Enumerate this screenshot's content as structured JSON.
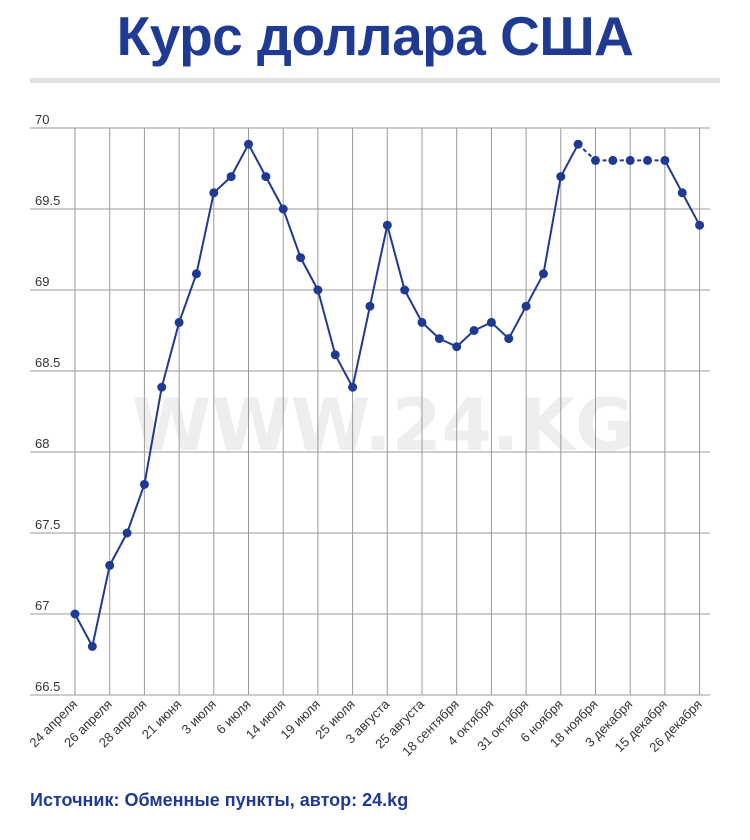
{
  "title": "Курс доллара США",
  "watermark": "WWW.24.KG",
  "source": "Источник: Обменные пункты, автор: 24.kg",
  "colors": {
    "title": "#1f3a93",
    "line": "#1f3a93",
    "grid": "#999999",
    "watermark": "#eeeeee"
  },
  "chart_data": {
    "type": "line",
    "y_ticks": [
      "70",
      "69.5",
      "69",
      "68.5",
      "68",
      "67.5",
      "67",
      "66.5"
    ],
    "ylim": [
      66.5,
      70
    ],
    "x_tick_labels": [
      "24 апреля",
      "26 апреля",
      "28 апреля",
      "21 июня",
      "3 июля",
      "6 июля",
      "14 июля",
      "19 июля",
      "25 июля",
      "3 августа",
      "25 августа",
      "18 сентября",
      "4 октября",
      "31 октября",
      "6 ноября",
      "18 ноября",
      "3 декабря",
      "15 декабря",
      "26 декабря"
    ],
    "grid": true,
    "points": [
      {
        "x": 0,
        "y": 67.0
      },
      {
        "x": 0.5,
        "y": 66.8
      },
      {
        "x": 1,
        "y": 67.3
      },
      {
        "x": 1.5,
        "y": 67.5
      },
      {
        "x": 2,
        "y": 67.8
      },
      {
        "x": 2.5,
        "y": 68.4
      },
      {
        "x": 3,
        "y": 68.8
      },
      {
        "x": 3.5,
        "y": 69.1
      },
      {
        "x": 4,
        "y": 69.6
      },
      {
        "x": 4.5,
        "y": 69.7
      },
      {
        "x": 5,
        "y": 69.9
      },
      {
        "x": 5.5,
        "y": 69.7
      },
      {
        "x": 6,
        "y": 69.5
      },
      {
        "x": 6.5,
        "y": 69.2
      },
      {
        "x": 7,
        "y": 69.0
      },
      {
        "x": 7.5,
        "y": 68.6
      },
      {
        "x": 8,
        "y": 68.4
      },
      {
        "x": 8.5,
        "y": 68.9
      },
      {
        "x": 9,
        "y": 69.4
      },
      {
        "x": 9.5,
        "y": 69.0
      },
      {
        "x": 10,
        "y": 68.8
      },
      {
        "x": 10.5,
        "y": 68.7
      },
      {
        "x": 11,
        "y": 68.65
      },
      {
        "x": 11.5,
        "y": 68.75
      },
      {
        "x": 12,
        "y": 68.8
      },
      {
        "x": 12.5,
        "y": 68.7
      },
      {
        "x": 13,
        "y": 68.9
      },
      {
        "x": 13.5,
        "y": 69.1
      },
      {
        "x": 14,
        "y": 69.7
      },
      {
        "x": 14.5,
        "y": 69.9
      },
      {
        "x": 15,
        "y": 69.8
      },
      {
        "x": 15.5,
        "y": 69.8
      },
      {
        "x": 16,
        "y": 69.8
      },
      {
        "x": 16.5,
        "y": 69.8
      },
      {
        "x": 17,
        "y": 69.8
      },
      {
        "x": 17.5,
        "y": 69.6
      },
      {
        "x": 18,
        "y": 69.4
      }
    ]
  }
}
